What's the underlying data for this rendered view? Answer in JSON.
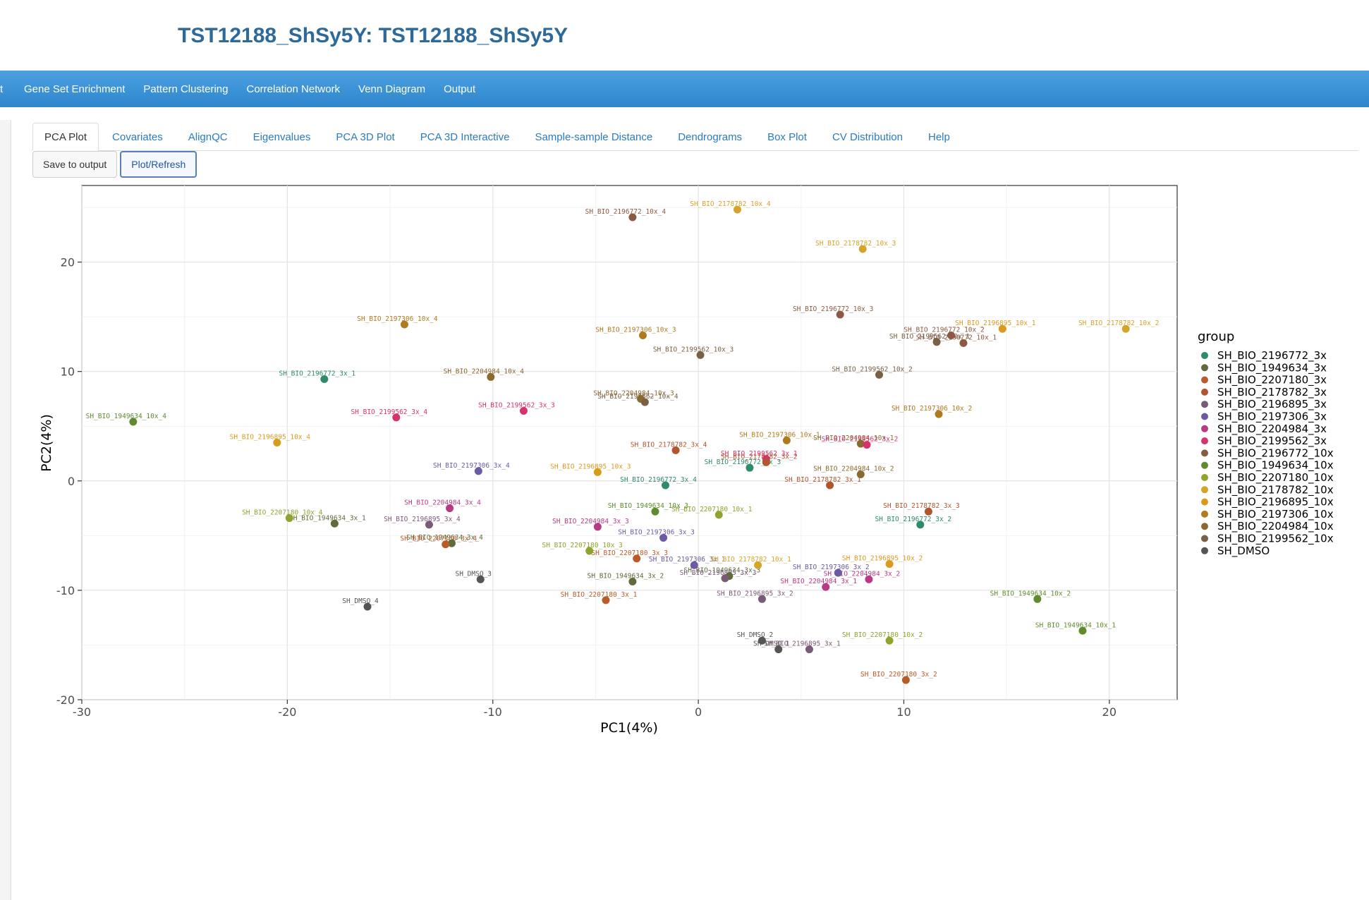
{
  "app": {
    "title": "TST12188_ShSy5Y: TST12188_ShSy5Y"
  },
  "nav": {
    "stub": "t",
    "items": [
      "Gene Set Enrichment",
      "Pattern Clustering",
      "Correlation Network",
      "Venn Diagram",
      "Output"
    ]
  },
  "tabs": [
    "PCA Plot",
    "Covariates",
    "AlignQC",
    "Eigenvalues",
    "PCA 3D Plot",
    "PCA 3D Interactive",
    "Sample-sample Distance",
    "Dendrograms",
    "Box Plot",
    "CV Distribution",
    "Help"
  ],
  "active_tab": "PCA Plot",
  "buttons": {
    "save": "Save to output",
    "refresh": "Plot/Refresh"
  },
  "colors": {
    "SH_BIO_2196772_3x": "#2e8b6e",
    "SH_BIO_1949634_3x": "#5f6b3a",
    "SH_BIO_2207180_3x": "#b85c2a",
    "SH_BIO_2178782_3x": "#b0562e",
    "SH_BIO_2196895_3x": "#7b5a78",
    "SH_BIO_2197306_3x": "#6c5aa3",
    "SH_BIO_2204984_3x": "#b83a85",
    "SH_BIO_2199562_3x": "#d6336e",
    "SH_BIO_2196772_10x": "#8b5a42",
    "SH_BIO_1949634_10x": "#5f8b2e",
    "SH_BIO_2207180_10x": "#8fa32e",
    "SH_BIO_2178782_10x": "#d4a52a",
    "SH_BIO_2196895_10x": "#d99a1e",
    "SH_BIO_2197306_10x": "#b07a1e",
    "SH_BIO_2204984_10x": "#8b6a2e",
    "SH_BIO_2199562_10x": "#7a6045",
    "SH_DMSO": "#555555"
  },
  "chart_data": {
    "type": "scatter",
    "xlabel": "PC1(4%)",
    "ylabel": "PC2(4%)",
    "xlim": [
      -30,
      23.3
    ],
    "ylim": [
      -20,
      27
    ],
    "xticks": [
      -30,
      -20,
      -10,
      0,
      10,
      20
    ],
    "yticks": [
      -20,
      -10,
      0,
      10,
      20
    ],
    "grid": true,
    "legend_title": "group",
    "legend_position": "right",
    "groups": [
      "SH_BIO_2196772_3x",
      "SH_BIO_1949634_3x",
      "SH_BIO_2207180_3x",
      "SH_BIO_2178782_3x",
      "SH_BIO_2196895_3x",
      "SH_BIO_2197306_3x",
      "SH_BIO_2204984_3x",
      "SH_BIO_2199562_3x",
      "SH_BIO_2196772_10x",
      "SH_BIO_1949634_10x",
      "SH_BIO_2207180_10x",
      "SH_BIO_2178782_10x",
      "SH_BIO_2196895_10x",
      "SH_BIO_2197306_10x",
      "SH_BIO_2204984_10x",
      "SH_BIO_2199562_10x",
      "SH_DMSO"
    ],
    "points": [
      {
        "label": "SH_BIO_2196772_10x_4",
        "group": "SH_BIO_2196772_10x",
        "x": -3.2,
        "y": 24.1
      },
      {
        "label": "SH_BIO_2178782_10x_4",
        "group": "SH_BIO_2178782_10x",
        "x": 1.9,
        "y": 24.8
      },
      {
        "label": "SH_BIO_2178782_10x_3",
        "group": "SH_BIO_2178782_10x",
        "x": 8.0,
        "y": 21.2
      },
      {
        "label": "SH_BIO_2196772_10x_3",
        "group": "SH_BIO_2196772_10x",
        "x": 6.9,
        "y": 15.2
      },
      {
        "label": "SH_BIO_2196772_10x_2",
        "group": "SH_BIO_2196772_10x",
        "x": 12.3,
        "y": 13.3
      },
      {
        "label": "SH_BIO_2199562_10x_1",
        "group": "SH_BIO_2199562_10x",
        "x": 11.6,
        "y": 12.7
      },
      {
        "label": "SH_BIO_2196772_10x_1",
        "group": "SH_BIO_2196772_10x",
        "x": 12.9,
        "y": 12.6
      },
      {
        "label": "SH_BIO_2196895_10x_1",
        "group": "SH_BIO_2196895_10x",
        "x": 14.8,
        "y": 13.9
      },
      {
        "label": "SH_BIO_2178782_10x_2",
        "group": "SH_BIO_2178782_10x",
        "x": 20.8,
        "y": 13.9
      },
      {
        "label": "SH_BIO_2197306_10x_4",
        "group": "SH_BIO_2197306_10x",
        "x": -14.3,
        "y": 14.3
      },
      {
        "label": "SH_BIO_2197306_10x_3",
        "group": "SH_BIO_2197306_10x",
        "x": -2.7,
        "y": 13.3
      },
      {
        "label": "SH_BIO_2199562_10x_3",
        "group": "SH_BIO_2199562_10x",
        "x": 0.1,
        "y": 11.5
      },
      {
        "label": "SH_BIO_2199562_10x_2",
        "group": "SH_BIO_2199562_10x",
        "x": 8.8,
        "y": 9.7
      },
      {
        "label": "SH_BIO_2196772_3x_1",
        "group": "SH_BIO_2196772_3x",
        "x": -18.2,
        "y": 9.3
      },
      {
        "label": "SH_BIO_2204984_10x_4",
        "group": "SH_BIO_2204984_10x",
        "x": -10.1,
        "y": 9.5
      },
      {
        "label": "SH_BIO_2204984_10x_3",
        "group": "SH_BIO_2204984_10x",
        "x": -2.8,
        "y": 7.5
      },
      {
        "label": "SH_BIO_2199562_10x_4",
        "group": "SH_BIO_2199562_10x",
        "x": -2.6,
        "y": 7.2
      },
      {
        "label": "SH_BIO_2199562_3x_3",
        "group": "SH_BIO_2199562_3x",
        "x": -8.5,
        "y": 6.4
      },
      {
        "label": "SH_BIO_2199562_3x_4",
        "group": "SH_BIO_2199562_3x",
        "x": -14.7,
        "y": 5.8
      },
      {
        "label": "SH_BIO_2197306_10x_2",
        "group": "SH_BIO_2197306_10x",
        "x": 11.7,
        "y": 6.1
      },
      {
        "label": "SH_BIO_1949634_10x_4",
        "group": "SH_BIO_1949634_10x",
        "x": -27.5,
        "y": 5.4
      },
      {
        "label": "SH_BIO_2196895_10x_4",
        "group": "SH_BIO_2196895_10x",
        "x": -20.5,
        "y": 3.5
      },
      {
        "label": "SH_BIO_2197306_10x_1",
        "group": "SH_BIO_2197306_10x",
        "x": 4.3,
        "y": 3.7
      },
      {
        "label": "SH_BIO_2204984_10x_1",
        "group": "SH_BIO_2204984_10x",
        "x": 7.9,
        "y": 3.4
      },
      {
        "label": "SH_BIO_2199562_3x_2",
        "group": "SH_BIO_2199562_3x",
        "x": 8.2,
        "y": 3.3
      },
      {
        "label": "SH_BIO_2178782_3x_4",
        "group": "SH_BIO_2178782_3x",
        "x": -1.1,
        "y": 2.8
      },
      {
        "label": "SH_BIO_2199562_3x_1",
        "group": "SH_BIO_2199562_3x",
        "x": 3.3,
        "y": 2.0
      },
      {
        "label": "SH_BIO_2178782_3x_2",
        "group": "SH_BIO_2178782_3x",
        "x": 3.3,
        "y": 1.7
      },
      {
        "label": "SH_BIO_2196772_3x_3",
        "group": "SH_BIO_2196772_3x",
        "x": 2.5,
        "y": 1.2
      },
      {
        "label": "SH_BIO_2204984_10x_2",
        "group": "SH_BIO_2204984_10x",
        "x": 7.9,
        "y": 0.6
      },
      {
        "label": "SH_BIO_2197306_3x_4",
        "group": "SH_BIO_2197306_3x",
        "x": -10.7,
        "y": 0.9
      },
      {
        "label": "SH_BIO_2196895_10x_3",
        "group": "SH_BIO_2196895_10x",
        "x": -4.9,
        "y": 0.8
      },
      {
        "label": "SH_BIO_2196772_3x_4",
        "group": "SH_BIO_2196772_3x",
        "x": -1.6,
        "y": -0.4
      },
      {
        "label": "SH_BIO_2178782_3x_1",
        "group": "SH_BIO_2178782_3x",
        "x": 6.4,
        "y": -0.4
      },
      {
        "label": "SH_BIO_2207180_10x_4",
        "group": "SH_BIO_2207180_10x",
        "x": -19.9,
        "y": -3.4
      },
      {
        "label": "SH_BIO_1949634_3x_1",
        "group": "SH_BIO_1949634_3x",
        "x": -17.7,
        "y": -3.9
      },
      {
        "label": "SH_BIO_2204984_3x_4",
        "group": "SH_BIO_2204984_3x",
        "x": -12.1,
        "y": -2.5
      },
      {
        "label": "SH_BIO_2196895_3x_4",
        "group": "SH_BIO_2196895_3x",
        "x": -13.1,
        "y": -4.0
      },
      {
        "label": "SH_BIO_1949634_3x_4",
        "group": "SH_BIO_1949634_3x",
        "x": -12.0,
        "y": -5.7
      },
      {
        "label": "SH_BIO_2207180_3x_4",
        "group": "SH_BIO_2207180_3x",
        "x": -12.3,
        "y": -5.8
      },
      {
        "label": "SH_BIO_1949634_10x_3",
        "group": "SH_BIO_1949634_10x",
        "x": -2.1,
        "y": -2.8
      },
      {
        "label": "SH_BIO_2207180_10x_1",
        "group": "SH_BIO_2207180_10x",
        "x": 1.0,
        "y": -3.1
      },
      {
        "label": "SH_BIO_2204984_3x_3",
        "group": "SH_BIO_2204984_3x",
        "x": -4.9,
        "y": -4.2
      },
      {
        "label": "SH_BIO_2197306_3x_3",
        "group": "SH_BIO_2197306_3x",
        "x": -1.7,
        "y": -5.2
      },
      {
        "label": "SH_BIO_2178782_3x_3",
        "group": "SH_BIO_2178782_3x",
        "x": 11.2,
        "y": -2.8
      },
      {
        "label": "SH_BIO_2196772_3x_2",
        "group": "SH_BIO_2196772_3x",
        "x": 10.8,
        "y": -4.0
      },
      {
        "label": "SH_BIO_2207180_10x_3",
        "group": "SH_BIO_2207180_10x",
        "x": -5.3,
        "y": -6.4
      },
      {
        "label": "SH_BIO_2207180_3x_3",
        "group": "SH_BIO_2207180_3x",
        "x": -3.0,
        "y": -7.1
      },
      {
        "label": "SH_BIO_2197306_3x_1",
        "group": "SH_BIO_2197306_3x",
        "x": -0.2,
        "y": -7.7
      },
      {
        "label": "SH_BIO_2178782_10x_1",
        "group": "SH_BIO_2178782_10x",
        "x": 2.9,
        "y": -7.7
      },
      {
        "label": "SH_BIO_1949634_3x_3",
        "group": "SH_BIO_1949634_3x",
        "x": 1.5,
        "y": -8.7
      },
      {
        "label": "SH_BIO_2196895_3x_3",
        "group": "SH_BIO_2196895_3x",
        "x": 1.3,
        "y": -8.9
      },
      {
        "label": "SH_BIO_1949634_3x_2",
        "group": "SH_BIO_1949634_3x",
        "x": -3.2,
        "y": -9.2
      },
      {
        "label": "SH_BIO_2197306_3x_2",
        "group": "SH_BIO_2197306_3x",
        "x": 6.8,
        "y": -8.4
      },
      {
        "label": "SH_BIO_2196895_10x_2",
        "group": "SH_BIO_2196895_10x",
        "x": 9.3,
        "y": -7.6
      },
      {
        "label": "SH_BIO_2204984_3x_2",
        "group": "SH_BIO_2204984_3x",
        "x": 8.3,
        "y": -9.0
      },
      {
        "label": "SH_BIO_2204984_3x_1",
        "group": "SH_BIO_2204984_3x",
        "x": 6.2,
        "y": -9.7
      },
      {
        "label": "SH_DMSO_3",
        "group": "SH_DMSO",
        "x": -10.6,
        "y": -9.0
      },
      {
        "label": "SH_DMSO_4",
        "group": "SH_DMSO",
        "x": -16.1,
        "y": -11.5
      },
      {
        "label": "SH_BIO_2207180_3x_1",
        "group": "SH_BIO_2207180_3x",
        "x": -4.5,
        "y": -10.9
      },
      {
        "label": "SH_BIO_2196895_3x_2",
        "group": "SH_BIO_2196895_3x",
        "x": 3.1,
        "y": -10.8
      },
      {
        "label": "SH_BIO_1949634_10x_2",
        "group": "SH_BIO_1949634_10x",
        "x": 16.5,
        "y": -10.8
      },
      {
        "label": "SH_BIO_1949634_10x_1",
        "group": "SH_BIO_1949634_10x",
        "x": 18.7,
        "y": -13.7
      },
      {
        "label": "SH_DMSO_2",
        "group": "SH_DMSO",
        "x": 3.1,
        "y": -14.6
      },
      {
        "label": "SH_DMSO_1",
        "group": "SH_DMSO",
        "x": 3.9,
        "y": -15.4
      },
      {
        "label": "SH_BIO_2196895_3x_1",
        "group": "SH_BIO_2196895_3x",
        "x": 5.4,
        "y": -15.4
      },
      {
        "label": "SH_BIO_2207180_10x_2",
        "group": "SH_BIO_2207180_10x",
        "x": 9.3,
        "y": -14.6
      },
      {
        "label": "SH_BIO_2207180_3x_2",
        "group": "SH_BIO_2207180_3x",
        "x": 10.1,
        "y": -18.2
      }
    ]
  }
}
